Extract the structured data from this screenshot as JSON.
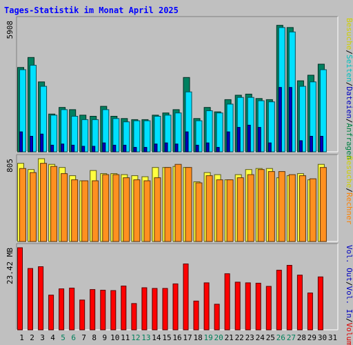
{
  "chart_data": {
    "type": "bar",
    "title": "Tages-Statistik im Monat April 2025",
    "categories": [
      "1",
      "2",
      "3",
      "4",
      "5",
      "6",
      "7",
      "8",
      "9",
      "10",
      "11",
      "12",
      "13",
      "14",
      "15",
      "16",
      "17",
      "18",
      "19",
      "20",
      "21",
      "22",
      "23",
      "24",
      "25",
      "26",
      "27",
      "28",
      "29",
      "30",
      "31"
    ],
    "weekend_days": [
      5,
      6,
      12,
      13,
      19,
      20,
      26,
      27
    ],
    "panels": [
      {
        "id": "requests",
        "ymax": 5908,
        "max_label": "5908",
        "right_labels": [
          {
            "text": "Anfragen",
            "color": "#008040"
          },
          {
            "text": "/",
            "color": "#000000"
          },
          {
            "text": "Dateien",
            "color": "#0000c0"
          },
          {
            "text": "/",
            "color": "#000000"
          },
          {
            "text": "Seiten",
            "color": "#00c0c0"
          },
          {
            "text": "/",
            "color": "#000000"
          },
          {
            "text": "Besuche",
            "color": "#d0d000"
          }
        ],
        "series": [
          {
            "name": "Anfragen",
            "color": "#008060",
            "values": [
              3800,
              4250,
              3150,
              1700,
              2000,
              1900,
              1650,
              1600,
              2050,
              1600,
              1500,
              1450,
              1450,
              1650,
              1750,
              1900,
              3350,
              1500,
              2000,
              1800,
              2350,
              2550,
              2600,
              2400,
              2350,
              5700,
              5600,
              3200,
              3450,
              3950,
              null
            ]
          },
          {
            "name": "Dateien",
            "color": "#00e0ff",
            "values": [
              3700,
              3900,
              2950,
              1650,
              1900,
              1600,
              1450,
              1450,
              1900,
              1500,
              1350,
              1400,
              1400,
              1600,
              1650,
              1750,
              2700,
              1400,
              1850,
              1750,
              2150,
              2450,
              2450,
              2300,
              2250,
              5600,
              5400,
              2950,
              3150,
              3700,
              null
            ]
          },
          {
            "name": "Seiten",
            "color": "#0000c0",
            "values": [
              900,
              700,
              800,
              300,
              350,
              300,
              250,
              250,
              400,
              300,
              300,
              200,
              200,
              350,
              400,
              350,
              900,
              300,
              400,
              200,
              900,
              1100,
              1200,
              1100,
              400,
              2900,
              2900,
              500,
              700,
              700,
              null
            ]
          },
          {
            "name": "Besuche",
            "color": "#ffff00",
            "values": [
              0,
              0,
              0,
              0,
              0,
              0,
              0,
              0,
              0,
              0,
              0,
              0,
              0,
              0,
              0,
              0,
              0,
              0,
              0,
              0,
              0,
              0,
              0,
              0,
              0,
              0,
              0,
              0,
              0,
              0,
              null
            ]
          }
        ]
      },
      {
        "id": "visits",
        "ymax": 805,
        "max_label": "805",
        "right_labels": [
          {
            "text": "Rechner",
            "color": "#ff8000"
          },
          {
            "text": "/",
            "color": "#000000"
          },
          {
            "text": "Besuche",
            "color": "#d0d000"
          }
        ],
        "series": [
          {
            "name": "Besuche",
            "color": "#ffff40",
            "values": [
              760,
              700,
              805,
              750,
              720,
              640,
              590,
              690,
              660,
              660,
              650,
              640,
              630,
              720,
              720,
              730,
              720,
              580,
              670,
              650,
              600,
              650,
              700,
              710,
              710,
              620,
              640,
              660,
              600,
              750,
              null
            ]
          },
          {
            "name": "Rechner",
            "color": "#ff9020",
            "values": [
              710,
              670,
              760,
              730,
              660,
              600,
              590,
              590,
              650,
              650,
              620,
              600,
              590,
              620,
              720,
              750,
              720,
              570,
              640,
              600,
              600,
              620,
              650,
              700,
              680,
              680,
              650,
              640,
              610,
              720,
              null
            ]
          }
        ]
      },
      {
        "id": "volume",
        "ymax": 23.42,
        "max_label": "23.42 MB",
        "right_labels": [
          {
            "text": "Volumen",
            "color": "#e00000"
          },
          {
            "text": "/",
            "color": "#000000"
          },
          {
            "text": "Vol. In",
            "color": "#0000c0"
          },
          {
            "text": "/",
            "color": "#000000"
          },
          {
            "text": "Vol. Out",
            "color": "#0000c0"
          }
        ],
        "series": [
          {
            "name": "Volumen",
            "color": "#ff0000",
            "values": [
              23.42,
              17.5,
              18.0,
              9.9,
              11.7,
              11.9,
              8.5,
              11.5,
              11.3,
              11.2,
              12.5,
              7.5,
              12.0,
              11.8,
              11.8,
              13.1,
              18.8,
              8.2,
              13.4,
              7.3,
              16.0,
              13.6,
              13.4,
              13.3,
              12.4,
              17.0,
              18.4,
              15.6,
              10.5,
              15.1,
              null
            ]
          }
        ]
      }
    ]
  },
  "colors": {
    "background": "#c0c0c0",
    "plot_background": "#c0c0c0",
    "title": "#0000ff",
    "weekday_label": "#000000",
    "weekend_label": "#00805a"
  }
}
